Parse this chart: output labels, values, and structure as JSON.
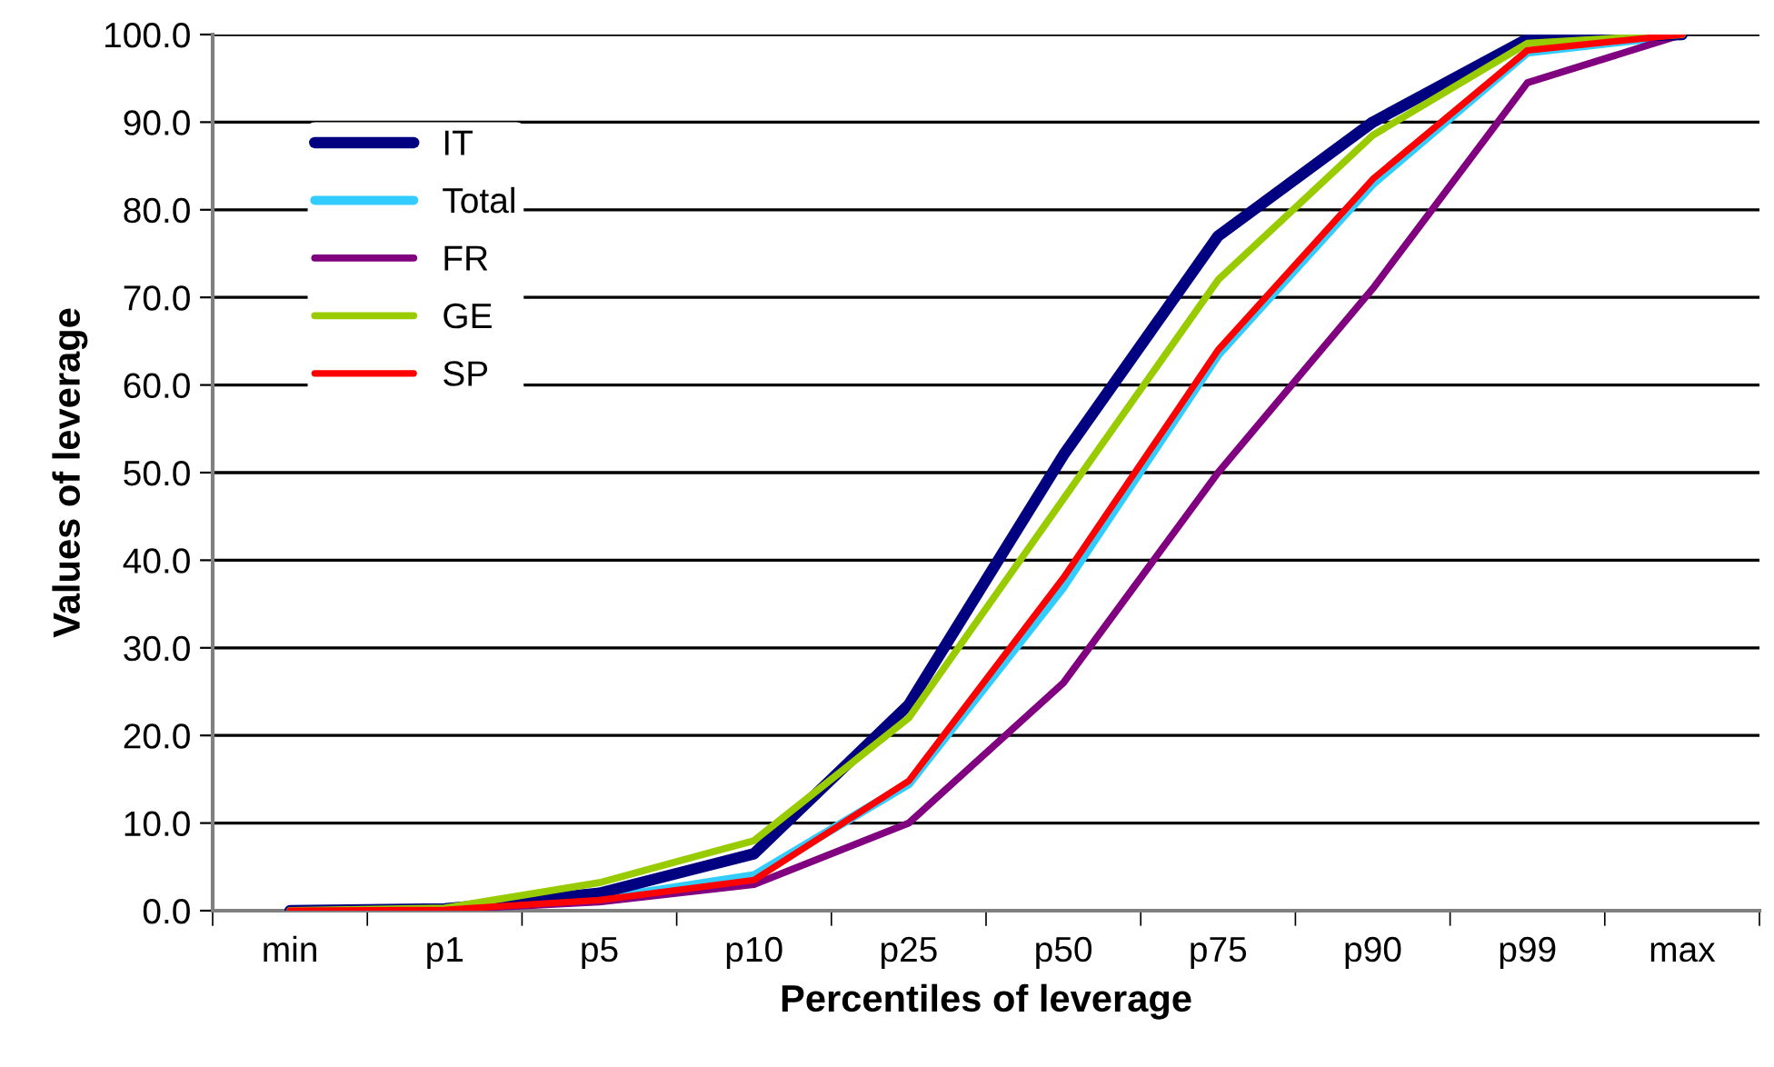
{
  "chart_data": {
    "type": "line",
    "xlabel": "Percentiles of leverage",
    "ylabel": "Values of leverage",
    "categories": [
      "min",
      "p1",
      "p5",
      "p10",
      "p25",
      "p50",
      "p75",
      "p90",
      "p99",
      "max"
    ],
    "series": [
      {
        "name": "IT",
        "color": "#000080",
        "values": [
          0,
          0.2,
          2,
          6.5,
          23.5,
          52,
          77,
          90,
          99.5,
          100
        ]
      },
      {
        "name": "Total",
        "color": "#33ccff",
        "values": [
          0,
          0.1,
          1.3,
          4,
          14.5,
          37,
          63.5,
          83,
          98,
          100
        ]
      },
      {
        "name": "FR",
        "color": "#800080",
        "values": [
          0,
          0.1,
          1,
          3,
          10,
          26,
          50,
          71,
          94.5,
          100
        ]
      },
      {
        "name": "GE",
        "color": "#99cc00",
        "values": [
          0,
          0.3,
          3.2,
          8,
          22,
          47,
          72,
          88.5,
          99,
          100
        ]
      },
      {
        "name": "SP",
        "color": "#ff0000",
        "values": [
          0,
          0.1,
          1.2,
          3.5,
          14.8,
          38,
          64,
          83.5,
          98.2,
          100
        ]
      }
    ],
    "ylim": [
      0,
      100
    ],
    "yticks": [
      {
        "value": 0,
        "label": "0.0"
      },
      {
        "value": 10,
        "label": "10.0"
      },
      {
        "value": 20,
        "label": "20.0"
      },
      {
        "value": 30,
        "label": "30.0"
      },
      {
        "value": 40,
        "label": "40.0"
      },
      {
        "value": 50,
        "label": "50.0"
      },
      {
        "value": 60,
        "label": "60.0"
      },
      {
        "value": 70,
        "label": "70.0"
      },
      {
        "value": 80,
        "label": "80.0"
      },
      {
        "value": 90,
        "label": "90.0"
      },
      {
        "value": 100,
        "label": "100.0"
      }
    ],
    "grid": "y",
    "legend": "top left",
    "marker": "none",
    "line_style": "solid"
  }
}
